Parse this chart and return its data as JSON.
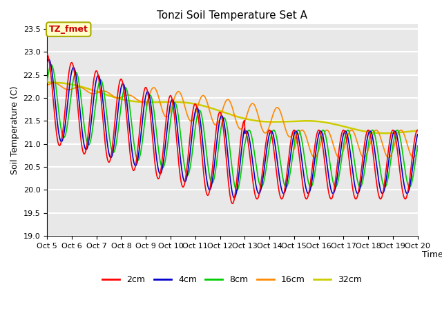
{
  "title": "Tonzi Soil Temperature Set A",
  "xlabel": "Time",
  "ylabel": "Soil Temperature (C)",
  "ylim": [
    19.0,
    23.6
  ],
  "annotation_text": "TZ_fmet",
  "annotation_box_color": "#ffffcc",
  "annotation_text_color": "#cc0000",
  "annotation_border_color": "#aaaa00",
  "series_colors": [
    "#ff0000",
    "#0000cc",
    "#00cc00",
    "#ff8800",
    "#cccc00"
  ],
  "series_labels": [
    "2cm",
    "4cm",
    "8cm",
    "16cm",
    "32cm"
  ],
  "plot_bg_color": "#e8e8e8",
  "grid_color": "#ffffff",
  "n_points": 720
}
